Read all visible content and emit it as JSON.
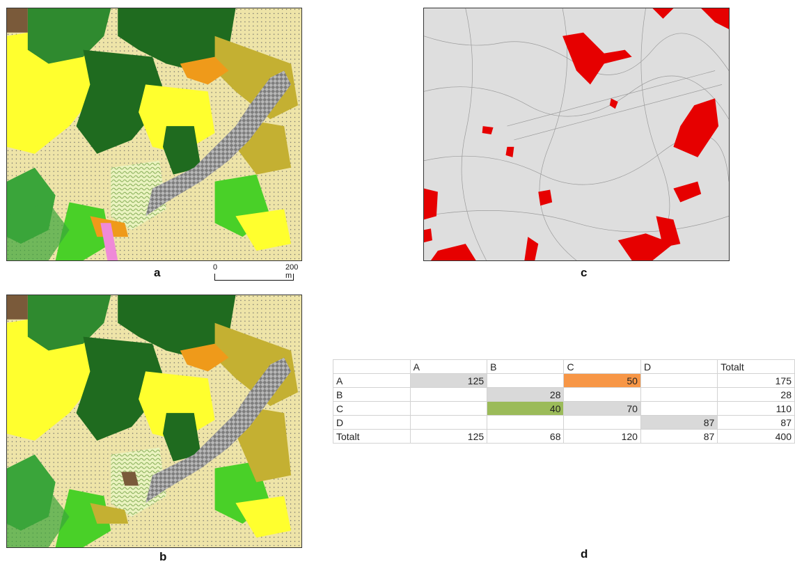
{
  "panels": {
    "a": {
      "label": "a"
    },
    "b": {
      "label": "b"
    },
    "c": {
      "label": "c"
    },
    "d": {
      "label": "d"
    }
  },
  "scale_bar": {
    "start": "0",
    "end": "200 m"
  },
  "colors": {
    "dark_forest": "#1f6b1f",
    "mid_forest": "#3aa53a",
    "bright_green": "#49d028",
    "light_cream": "#f5f0b4",
    "pale_cream": "#eee4a8",
    "yellow": "#ffff2e",
    "olive": "#c4b032",
    "orange": "#ef9a1a",
    "urban_gray": "#8e8e8e",
    "pink": "#ef8ad8",
    "brown": "#7a5a3a",
    "change_red": "#e60000",
    "change_bg": "#dedede",
    "cell_gray": "#d9d9d9",
    "cell_orange": "#f79646",
    "cell_green": "#9bbb59"
  },
  "matrix": {
    "header": [
      "",
      "A",
      "B",
      "C",
      "D",
      "Totalt"
    ],
    "rows": [
      {
        "label": "A",
        "cells": [
          "125",
          "",
          "50",
          "",
          "175"
        ]
      },
      {
        "label": "B",
        "cells": [
          "",
          "28",
          "",
          "",
          "28"
        ]
      },
      {
        "label": "C",
        "cells": [
          "",
          "40",
          "70",
          "",
          "110"
        ]
      },
      {
        "label": "D",
        "cells": [
          "",
          "",
          "",
          "87",
          "87"
        ]
      },
      {
        "label": "Totalt",
        "cells": [
          "125",
          "68",
          "120",
          "87",
          "400"
        ]
      }
    ]
  }
}
